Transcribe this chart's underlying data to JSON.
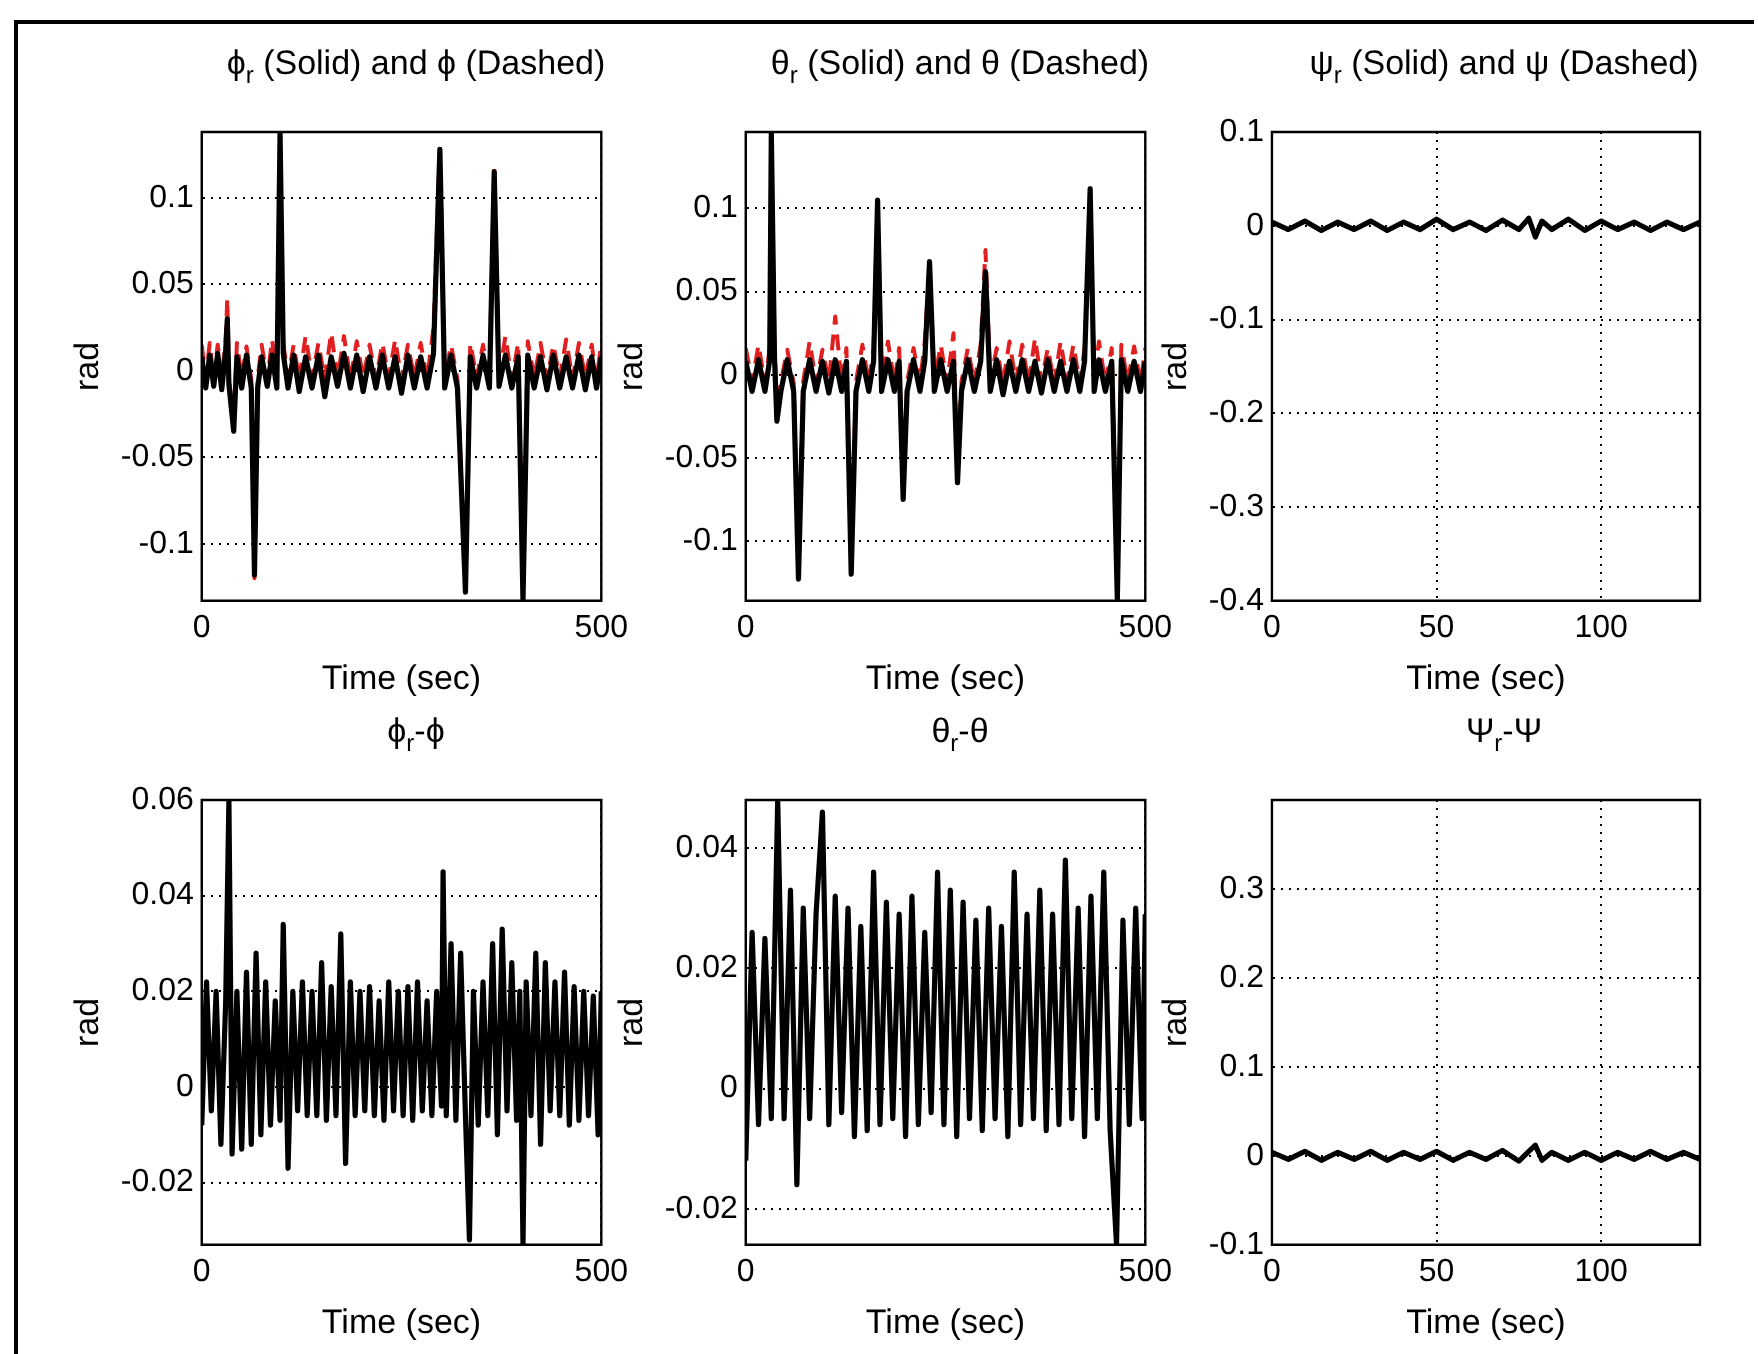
{
  "chart_data": [
    {
      "type": "line",
      "title": "ϕ$_{r}$ (Solid) and ϕ (Dashed)",
      "xlabel": "Time (sec)",
      "ylabel": "rad",
      "grid": true,
      "xlim": [
        0,
        500
      ],
      "xticks": [
        0,
        500
      ],
      "ylim": [
        -0.133,
        0.138
      ],
      "yticks": [
        -0.1,
        -0.05,
        0,
        0.05,
        0.1
      ],
      "x": [
        0,
        5,
        10,
        15,
        20,
        25,
        30,
        32,
        34,
        40,
        44,
        50,
        56,
        62,
        66,
        70,
        75,
        82,
        88,
        94,
        98,
        102,
        108,
        115,
        122,
        130,
        138,
        146,
        154,
        162,
        170,
        178,
        186,
        194,
        202,
        210,
        218,
        226,
        234,
        242,
        250,
        258,
        266,
        274,
        282,
        290,
        298,
        304,
        312,
        320,
        330,
        336,
        344,
        352,
        360,
        366,
        372,
        380,
        388,
        396,
        402,
        408,
        416,
        424,
        432,
        440,
        448,
        456,
        464,
        472,
        480,
        488,
        494,
        500
      ],
      "series": [
        {
          "color": "#000000",
          "line_style": "solid",
          "values": [
            0.008,
            -0.01,
            0.009,
            -0.009,
            0.01,
            -0.011,
            0.012,
            0.03,
            -0.008,
            -0.035,
            0.008,
            -0.01,
            0.009,
            -0.01,
            -0.118,
            -0.01,
            0.008,
            -0.009,
            0.009,
            -0.01,
            0.138,
            0.01,
            -0.01,
            0.009,
            -0.012,
            0.008,
            -0.01,
            0.009,
            -0.015,
            0.008,
            -0.009,
            0.01,
            -0.01,
            0.009,
            -0.012,
            0.008,
            -0.01,
            0.009,
            -0.01,
            0.008,
            -0.013,
            0.009,
            -0.01,
            0.008,
            -0.01,
            0.01,
            0.128,
            -0.01,
            0.009,
            -0.01,
            -0.128,
            0.008,
            -0.01,
            0.009,
            -0.01,
            0.115,
            -0.009,
            0.009,
            -0.01,
            0.008,
            -0.133,
            0.009,
            -0.01,
            0.008,
            -0.011,
            0.009,
            -0.01,
            0.008,
            -0.01,
            0.009,
            -0.011,
            0.008,
            -0.01,
            0.008
          ]
        },
        {
          "color": "#e02020",
          "line_style": "dashed",
          "values": [
            0.015,
            -0.004,
            0.016,
            -0.005,
            0.015,
            -0.004,
            0.018,
            0.042,
            -0.003,
            -0.03,
            0.016,
            -0.004,
            0.014,
            -0.005,
            -0.12,
            -0.004,
            0.015,
            -0.005,
            0.018,
            -0.004,
            null,
            0.016,
            -0.004,
            0.015,
            -0.005,
            0.02,
            -0.004,
            0.016,
            -0.005,
            0.022,
            -0.004,
            0.02,
            -0.005,
            0.017,
            -0.004,
            0.015,
            -0.005,
            0.016,
            -0.004,
            0.018,
            -0.005,
            0.015,
            -0.004,
            0.016,
            -0.005,
            0.025,
            0.13,
            -0.004,
            0.015,
            -0.005,
            -0.126,
            0.016,
            -0.004,
            0.015,
            -0.005,
            0.118,
            -0.004,
            0.02,
            -0.005,
            0.016,
            -0.13,
            0.017,
            -0.004,
            0.016,
            -0.005,
            0.015,
            -0.004,
            0.018,
            -0.005,
            0.016,
            -0.004,
            0.015,
            -0.005,
            0.016
          ]
        }
      ]
    },
    {
      "type": "line",
      "title": "θ$_{r}$ (Solid) and θ (Dashed)",
      "xlabel": "Time (sec)",
      "ylabel": "rad",
      "grid": true,
      "xlim": [
        0,
        500
      ],
      "xticks": [
        0,
        500
      ],
      "ylim": [
        -0.136,
        0.146
      ],
      "yticks": [
        -0.1,
        -0.05,
        0,
        0.05,
        0.1
      ],
      "x": [
        0,
        8,
        16,
        24,
        30,
        32,
        36,
        39,
        44,
        52,
        60,
        66,
        72,
        80,
        88,
        96,
        104,
        112,
        120,
        126,
        132,
        138,
        146,
        154,
        160,
        165,
        170,
        178,
        186,
        192,
        197,
        202,
        210,
        218,
        224,
        230,
        236,
        244,
        252,
        260,
        265,
        270,
        278,
        286,
        294,
        300,
        306,
        314,
        322,
        330,
        338,
        346,
        354,
        362,
        370,
        378,
        386,
        394,
        402,
        410,
        418,
        424,
        431,
        436,
        442,
        450,
        458,
        465,
        470,
        478,
        486,
        494,
        500
      ],
      "series": [
        {
          "color": "#000000",
          "line_style": "solid",
          "values": [
            0.008,
            -0.01,
            0.009,
            -0.01,
            0.009,
            0.146,
            0.01,
            -0.028,
            -0.01,
            0.009,
            -0.01,
            -0.123,
            -0.01,
            0.009,
            -0.01,
            0.008,
            -0.011,
            0.009,
            -0.01,
            0.008,
            -0.12,
            -0.01,
            0.009,
            -0.01,
            0.008,
            0.105,
            -0.01,
            0.009,
            -0.01,
            0.008,
            -0.075,
            -0.01,
            0.009,
            -0.01,
            0.008,
            0.068,
            -0.01,
            0.009,
            -0.01,
            0.008,
            -0.065,
            -0.01,
            0.009,
            -0.01,
            0.008,
            0.062,
            -0.01,
            0.009,
            -0.012,
            0.008,
            -0.01,
            0.009,
            -0.01,
            0.008,
            -0.011,
            0.009,
            -0.01,
            0.008,
            -0.01,
            0.009,
            -0.01,
            0.008,
            0.112,
            -0.01,
            0.009,
            -0.01,
            0.008,
            -0.136,
            0.009,
            -0.01,
            0.008,
            -0.01,
            0.008
          ]
        },
        {
          "color": "#e02020",
          "line_style": "dashed",
          "values": [
            0.016,
            -0.004,
            0.018,
            -0.005,
            0.016,
            0.14,
            0.017,
            -0.02,
            -0.004,
            0.015,
            -0.005,
            -0.12,
            -0.004,
            0.02,
            -0.005,
            0.015,
            -0.004,
            0.035,
            -0.005,
            0.016,
            -0.117,
            -0.004,
            0.018,
            -0.005,
            0.016,
            0.103,
            -0.004,
            0.02,
            -0.005,
            0.016,
            -0.07,
            -0.004,
            0.016,
            -0.005,
            0.02,
            0.065,
            -0.004,
            0.018,
            -0.005,
            0.025,
            -0.06,
            -0.004,
            0.016,
            -0.005,
            0.018,
            0.075,
            -0.004,
            0.016,
            -0.005,
            0.02,
            -0.004,
            0.018,
            -0.005,
            0.022,
            -0.004,
            0.016,
            -0.005,
            0.02,
            -0.004,
            0.018,
            -0.005,
            0.016,
            0.11,
            -0.004,
            0.02,
            -0.005,
            0.016,
            -0.133,
            0.018,
            -0.004,
            0.017,
            -0.005,
            0.016
          ]
        }
      ]
    },
    {
      "type": "line",
      "title": "ψ$_{r}$ (Solid) and ψ (Dashed)",
      "xlabel": "Time (sec)",
      "ylabel": "rad",
      "grid": true,
      "xlim": [
        0,
        130
      ],
      "xticks": [
        0,
        50,
        100
      ],
      "ylim": [
        -0.4,
        0.1
      ],
      "yticks": [
        -0.4,
        -0.3,
        -0.2,
        -0.1,
        0,
        0.1
      ],
      "x": [
        0,
        5,
        10,
        15,
        20,
        25,
        30,
        35,
        40,
        45,
        50,
        55,
        60,
        65,
        70,
        75,
        78,
        80,
        82,
        85,
        90,
        95,
        100,
        105,
        110,
        115,
        120,
        125,
        130
      ],
      "series": [
        {
          "color": "#000000",
          "line_style": "solid",
          "values": [
            0.004,
            -0.004,
            0.005,
            -0.005,
            0.004,
            -0.004,
            0.005,
            -0.005,
            0.004,
            -0.004,
            0.007,
            -0.004,
            0.004,
            -0.005,
            0.006,
            -0.004,
            0.008,
            -0.012,
            0.005,
            -0.004,
            0.007,
            -0.005,
            0.005,
            -0.004,
            0.004,
            -0.005,
            0.004,
            -0.004,
            0.004
          ]
        }
      ]
    },
    {
      "type": "line",
      "title": "ϕ$_{r}$-ϕ",
      "xlabel": "Time (sec)",
      "ylabel": "rad",
      "grid": true,
      "xlim": [
        0,
        500
      ],
      "xticks": [
        0,
        500
      ],
      "ylim": [
        -0.033,
        0.06
      ],
      "yticks": [
        -0.02,
        0,
        0.02,
        0.04,
        0.06
      ],
      "x": [
        0,
        6,
        12,
        18,
        24,
        30,
        34,
        38,
        44,
        50,
        56,
        62,
        68,
        74,
        80,
        86,
        92,
        98,
        102,
        108,
        114,
        120,
        126,
        132,
        138,
        144,
        150,
        156,
        162,
        168,
        174,
        180,
        186,
        192,
        198,
        204,
        210,
        216,
        222,
        228,
        234,
        240,
        246,
        252,
        258,
        264,
        270,
        276,
        282,
        288,
        294,
        300,
        302,
        306,
        312,
        318,
        324,
        330,
        335,
        340,
        346,
        352,
        358,
        364,
        370,
        376,
        382,
        388,
        394,
        398,
        402,
        406,
        412,
        418,
        424,
        430,
        436,
        442,
        448,
        454,
        460,
        466,
        472,
        478,
        484,
        490,
        496,
        500
      ],
      "series": [
        {
          "color": "#000000",
          "line_style": "solid",
          "values": [
            -0.008,
            0.022,
            -0.005,
            0.02,
            -0.012,
            0.018,
            0.06,
            -0.014,
            0.02,
            -0.013,
            0.024,
            -0.012,
            0.028,
            -0.01,
            0.022,
            -0.008,
            0.018,
            -0.007,
            0.034,
            -0.017,
            0.02,
            -0.005,
            0.022,
            -0.006,
            0.02,
            -0.006,
            0.026,
            -0.007,
            0.021,
            -0.006,
            0.032,
            -0.016,
            0.022,
            -0.006,
            0.02,
            -0.005,
            0.021,
            -0.006,
            0.018,
            -0.007,
            0.022,
            -0.005,
            0.02,
            -0.006,
            0.021,
            -0.007,
            0.022,
            -0.005,
            0.018,
            -0.006,
            0.02,
            -0.004,
            0.045,
            -0.006,
            0.03,
            -0.007,
            0.028,
            -0.006,
            -0.032,
            0.02,
            -0.008,
            0.022,
            -0.006,
            0.03,
            -0.01,
            0.033,
            -0.005,
            0.026,
            -0.007,
            0.02,
            -0.033,
            0.022,
            -0.006,
            0.028,
            -0.012,
            0.026,
            -0.005,
            0.022,
            -0.006,
            0.024,
            -0.008,
            0.021,
            -0.007,
            0.02,
            -0.006,
            0.019,
            -0.01,
            0.02
          ]
        }
      ]
    },
    {
      "type": "line",
      "title": "θ$_{r}$-θ",
      "xlabel": "Time (sec)",
      "ylabel": "rad",
      "grid": true,
      "xlim": [
        0,
        500
      ],
      "xticks": [
        0,
        500
      ],
      "ylim": [
        -0.026,
        0.048
      ],
      "yticks": [
        -0.02,
        0,
        0.02,
        0.04
      ],
      "x": [
        0,
        8,
        16,
        24,
        32,
        40,
        48,
        56,
        64,
        72,
        80,
        88,
        96,
        104,
        112,
        120,
        128,
        136,
        144,
        152,
        160,
        168,
        176,
        184,
        192,
        200,
        208,
        216,
        224,
        232,
        240,
        248,
        256,
        264,
        272,
        280,
        288,
        296,
        304,
        312,
        320,
        328,
        336,
        344,
        352,
        360,
        368,
        376,
        384,
        392,
        400,
        408,
        416,
        424,
        432,
        440,
        448,
        456,
        464,
        472,
        480,
        488,
        496,
        500
      ],
      "series": [
        {
          "color": "#000000",
          "line_style": "solid",
          "values": [
            -0.012,
            0.026,
            -0.006,
            0.025,
            -0.005,
            0.048,
            -0.005,
            0.033,
            -0.016,
            0.03,
            -0.005,
            0.029,
            0.046,
            -0.006,
            0.032,
            -0.004,
            0.03,
            -0.008,
            0.027,
            -0.007,
            0.036,
            -0.006,
            0.031,
            -0.005,
            0.029,
            -0.008,
            0.032,
            -0.006,
            0.026,
            -0.004,
            0.036,
            -0.006,
            0.033,
            -0.008,
            0.031,
            -0.005,
            0.028,
            -0.007,
            0.03,
            -0.005,
            0.027,
            -0.008,
            0.036,
            -0.006,
            0.029,
            -0.005,
            0.033,
            -0.007,
            0.029,
            -0.006,
            0.038,
            -0.005,
            0.03,
            -0.008,
            0.032,
            -0.005,
            0.036,
            -0.007,
            -0.026,
            0.028,
            -0.006,
            0.03,
            -0.005,
            0.029
          ]
        }
      ]
    },
    {
      "type": "line",
      "title": "Ψ$_{r}$-Ψ",
      "xlabel": "Time (sec)",
      "ylabel": "rad",
      "grid": true,
      "xlim": [
        0,
        130
      ],
      "xticks": [
        0,
        50,
        100
      ],
      "ylim": [
        -0.1,
        0.4
      ],
      "yticks": [
        -0.1,
        0,
        0.1,
        0.2,
        0.3
      ],
      "x": [
        0,
        5,
        10,
        15,
        20,
        25,
        30,
        35,
        40,
        45,
        50,
        55,
        60,
        65,
        70,
        75,
        78,
        80,
        82,
        85,
        90,
        95,
        100,
        105,
        110,
        115,
        120,
        125,
        130
      ],
      "series": [
        {
          "color": "#000000",
          "line_style": "solid",
          "values": [
            0.004,
            -0.004,
            0.005,
            -0.005,
            0.004,
            -0.004,
            0.005,
            -0.005,
            0.004,
            -0.004,
            0.005,
            -0.005,
            0.004,
            -0.004,
            0.006,
            -0.006,
            0.005,
            0.012,
            -0.005,
            0.004,
            -0.005,
            0.004,
            -0.005,
            0.004,
            -0.004,
            0.005,
            -0.004,
            0.004,
            -0.004
          ]
        }
      ]
    }
  ]
}
